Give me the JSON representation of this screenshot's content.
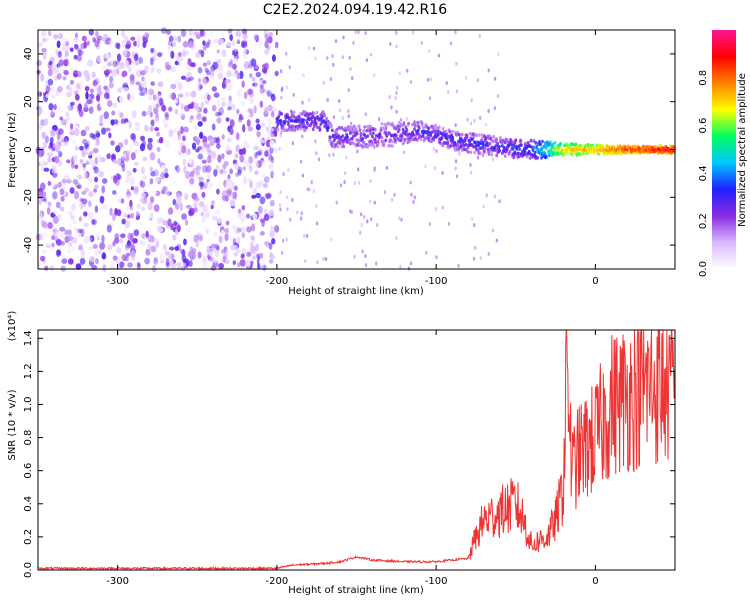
{
  "title": "C2E2.2024.094.19.42.R16",
  "chart_data": [
    {
      "type": "heatmap",
      "panel": "spectrogram",
      "xlabel": "Height of straight line (km)",
      "ylabel": "Frequency (Hz)",
      "xlim": [
        -350,
        50
      ],
      "ylim": [
        -50,
        50
      ],
      "x_ticks": [
        -300,
        -200,
        -100,
        0
      ],
      "x_tick_labels": [
        "-300",
        "-200",
        "-100",
        "0"
      ],
      "y_ticks": [
        -40,
        -20,
        0,
        20,
        40
      ],
      "y_tick_labels": [
        "-40",
        "-20",
        "0",
        "20",
        "40"
      ],
      "colorbar": {
        "label": "Normalized spectral amplitude",
        "range": [
          0.0,
          1.0
        ],
        "ticks": [
          0.0,
          0.2,
          0.4,
          0.6,
          0.8
        ],
        "tick_labels": [
          "0.0",
          "0.2",
          "0.4",
          "0.6",
          "0.8"
        ],
        "colormap": [
          "#ffffff",
          "#d9b8ff",
          "#8a2be2",
          "#2020ff",
          "#00c8ff",
          "#00ff60",
          "#ffff00",
          "#ff8000",
          "#ff0000",
          "#ff1493"
        ]
      },
      "features": {
        "noise_region_x": [
          -350,
          -200
        ],
        "noise_amplitude": 0.3,
        "signal_trace": [
          {
            "x": -200,
            "freq": 12,
            "amplitude": 0.3,
            "width": 8
          },
          {
            "x": -170,
            "freq": 12,
            "amplitude": 0.3,
            "width": 8
          },
          {
            "x": -165,
            "freq": 5,
            "amplitude": 0.3,
            "width": 8
          },
          {
            "x": -130,
            "freq": 6,
            "amplitude": 0.25,
            "width": 10
          },
          {
            "x": -110,
            "freq": 8,
            "amplitude": 0.3,
            "width": 8
          },
          {
            "x": -90,
            "freq": 4,
            "amplitude": 0.3,
            "width": 8
          },
          {
            "x": -60,
            "freq": 1,
            "amplitude": 0.3,
            "width": 8
          },
          {
            "x": -40,
            "freq": 0,
            "amplitude": 0.35,
            "width": 8
          },
          {
            "x": -20,
            "freq": 0,
            "amplitude": 0.7,
            "width": 5
          },
          {
            "x": 0,
            "freq": 0,
            "amplitude": 0.75,
            "width": 4
          },
          {
            "x": 20,
            "freq": 0,
            "amplitude": 0.85,
            "width": 3
          },
          {
            "x": 50,
            "freq": 0,
            "amplitude": 0.9,
            "width": 3
          }
        ]
      }
    },
    {
      "type": "line",
      "panel": "snr",
      "xlabel": "Height of straight line (km)",
      "ylabel": "SNR (10 * v/v)",
      "y_multiplier": "(x10⁴)",
      "xlim": [
        -350,
        50
      ],
      "ylim": [
        0.0,
        1.45
      ],
      "x_ticks": [
        -300,
        -200,
        -100,
        0
      ],
      "x_tick_labels": [
        "-300",
        "-200",
        "-100",
        "0"
      ],
      "y_ticks": [
        0.0,
        0.2,
        0.4,
        0.6,
        0.8,
        1.0,
        1.2,
        1.4
      ],
      "y_tick_labels": [
        "0.0",
        "0.2",
        "0.4",
        "0.6",
        "0.8",
        "1.0",
        "1.2",
        "1.4"
      ],
      "line_color": "#ee3333",
      "series": [
        {
          "x": [
            -350,
            -300,
            -250,
            -200,
            -190,
            -170,
            -160,
            -150,
            -140,
            -120,
            -100,
            -80,
            -75,
            -70,
            -60,
            -50,
            -45,
            -40,
            -35,
            -30,
            -25,
            -20,
            -18,
            -15,
            -10,
            -5,
            0,
            5,
            10,
            20,
            30,
            40,
            50
          ],
          "values": [
            0.01,
            0.01,
            0.01,
            0.01,
            0.03,
            0.04,
            0.05,
            0.08,
            0.06,
            0.05,
            0.05,
            0.07,
            0.2,
            0.3,
            0.35,
            0.4,
            0.3,
            0.15,
            0.18,
            0.2,
            0.3,
            0.5,
            1.42,
            0.6,
            0.7,
            0.75,
            0.8,
            0.9,
            1.0,
            1.05,
            1.1,
            1.12,
            1.12
          ]
        }
      ]
    }
  ]
}
